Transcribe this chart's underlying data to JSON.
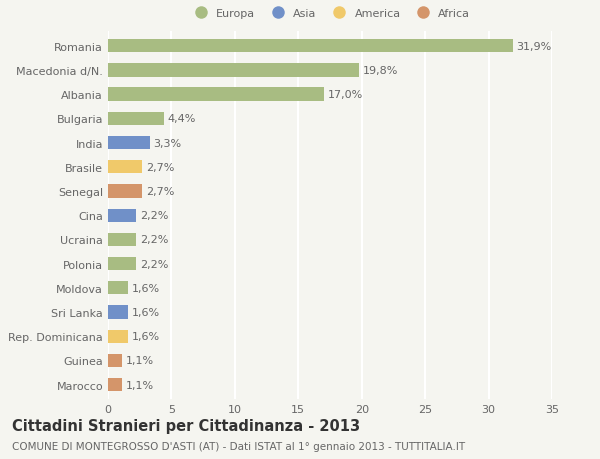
{
  "categories": [
    "Marocco",
    "Guinea",
    "Rep. Dominicana",
    "Sri Lanka",
    "Moldova",
    "Polonia",
    "Ucraina",
    "Cina",
    "Senegal",
    "Brasile",
    "India",
    "Bulgaria",
    "Albania",
    "Macedonia d/N.",
    "Romania"
  ],
  "values": [
    1.1,
    1.1,
    1.6,
    1.6,
    1.6,
    2.2,
    2.2,
    2.2,
    2.7,
    2.7,
    3.3,
    4.4,
    17.0,
    19.8,
    31.9
  ],
  "labels": [
    "1,1%",
    "1,1%",
    "1,6%",
    "1,6%",
    "1,6%",
    "2,2%",
    "2,2%",
    "2,2%",
    "2,7%",
    "2,7%",
    "3,3%",
    "4,4%",
    "17,0%",
    "19,8%",
    "31,9%"
  ],
  "colors": [
    "#d4956a",
    "#d4956a",
    "#f0c96a",
    "#7090c8",
    "#a8bc82",
    "#a8bc82",
    "#a8bc82",
    "#7090c8",
    "#d4956a",
    "#f0c96a",
    "#7090c8",
    "#a8bc82",
    "#a8bc82",
    "#a8bc82",
    "#a8bc82"
  ],
  "legend_labels": [
    "Europa",
    "Asia",
    "America",
    "Africa"
  ],
  "legend_colors": [
    "#a8bc82",
    "#7090c8",
    "#f0c96a",
    "#d4956a"
  ],
  "title": "Cittadini Stranieri per Cittadinanza - 2013",
  "subtitle": "COMUNE DI MONTEGROSSO D'ASTI (AT) - Dati ISTAT al 1° gennaio 2013 - TUTTITALIA.IT",
  "xlim": [
    0,
    35
  ],
  "xticks": [
    0,
    5,
    10,
    15,
    20,
    25,
    30,
    35
  ],
  "background_color": "#f5f5f0",
  "bar_height": 0.55,
  "grid_color": "#ffffff",
  "label_fontsize": 8,
  "tick_fontsize": 8,
  "title_fontsize": 10.5,
  "subtitle_fontsize": 7.5
}
